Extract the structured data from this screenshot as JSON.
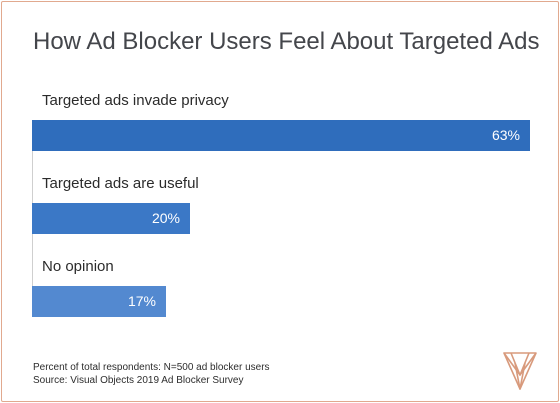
{
  "chart_data": {
    "type": "bar",
    "orientation": "horizontal",
    "title": "How Ad Blocker Users Feel About Targeted Ads",
    "categories": [
      "Targeted ads invade privacy",
      "Targeted ads are useful",
      "No opinion"
    ],
    "values": [
      63,
      20,
      17
    ],
    "value_labels": [
      "63%",
      "20%",
      "17%"
    ],
    "xlim": [
      0,
      63
    ],
    "grid": false,
    "legend": "none",
    "colors": [
      "#2f6dbc",
      "#3b78c6",
      "#5389d0"
    ],
    "footnotes": [
      "Percent of total respondents: N=500 ad blocker users",
      "Source: Visual Objects 2019 Ad Blocker Survey"
    ]
  },
  "theme": {
    "border_color": "#e1a98f",
    "logo_color": "#d89a7c"
  }
}
